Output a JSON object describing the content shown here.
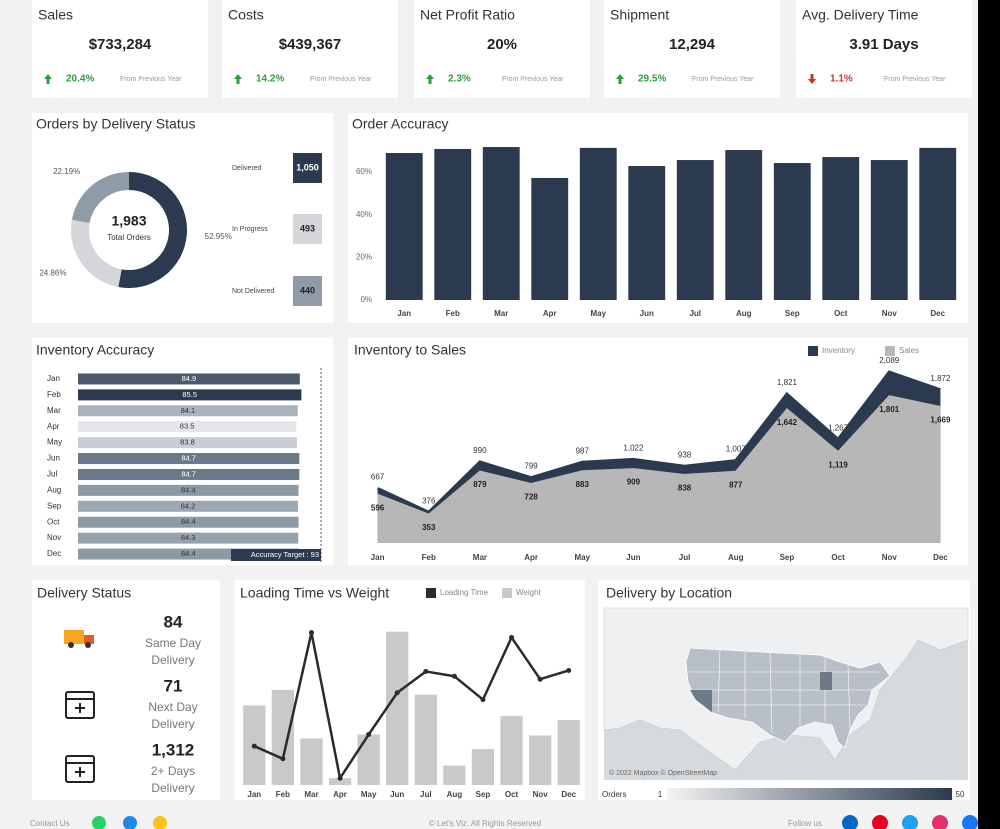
{
  "kpis": [
    {
      "title": "Sales",
      "value": "$733,284",
      "change": "20.4%",
      "trend": "up",
      "note": "From Previous Year"
    },
    {
      "title": "Costs",
      "value": "$439,367",
      "change": "14.2%",
      "trend": "up",
      "note": "From Previous Year"
    },
    {
      "title": "Net Profit Ratio",
      "value": "20%",
      "change": "2.3%",
      "trend": "up",
      "note": "From Previous Year"
    },
    {
      "title": "Shipment",
      "value": "12,294",
      "change": "29.5%",
      "trend": "up",
      "note": "From Previous Year"
    },
    {
      "title": "Avg. Delivery Time",
      "value": "3.91 Days",
      "change": "1.1%",
      "trend": "down",
      "note": "From Previous Year"
    }
  ],
  "chart_data": [
    {
      "type": "pie",
      "title": "Orders by Delivery Status",
      "categories": [
        "Delivered",
        "In Progress",
        "Not Delivered"
      ],
      "values": [
        52.95,
        24.86,
        22.19
      ],
      "value_labels": [
        "52.95%",
        "24.86%",
        "22.19%"
      ],
      "counts": [
        "1,050",
        "493",
        "440"
      ],
      "colors": [
        "#2b3a4e",
        "#d5d6da",
        "#8f9ba6"
      ],
      "total": "1,983",
      "total_label": "Total Orders"
    },
    {
      "type": "bar",
      "title": "Order Accuracy",
      "categories": [
        "Jan",
        "Feb",
        "Mar",
        "Apr",
        "May",
        "Jun",
        "Jul",
        "Aug",
        "Sep",
        "Oct",
        "Nov",
        "Dec"
      ],
      "values": [
        68.9,
        70.8,
        71.7,
        57.2,
        71.3,
        62.8,
        65.6,
        70.3,
        64.2,
        67.0,
        65.6,
        71.3
      ],
      "color": "#2b3a4e",
      "ylim": [
        0,
        75
      ],
      "yticks": [
        {
          "value": 0,
          "label": "0%"
        },
        {
          "value": 20,
          "label": "20%"
        },
        {
          "value": 40,
          "label": "40%"
        },
        {
          "value": 60,
          "label": "60%"
        }
      ]
    },
    {
      "type": "hbar",
      "title": "Inventory Accuracy",
      "categories": [
        "Jan",
        "Feb",
        "Mar",
        "Apr",
        "May",
        "Jun",
        "Jul",
        "Aug",
        "Sep",
        "Oct",
        "Nov",
        "Dec"
      ],
      "values": [
        84.9,
        85.5,
        84.1,
        83.5,
        83.8,
        84.7,
        84.7,
        84.4,
        84.2,
        84.4,
        84.3,
        84.4
      ],
      "colors": [
        "#4b5a6b",
        "#2b3a4e",
        "#aab3bd",
        "#e3e5e9",
        "#c9ced5",
        "#6b7888",
        "#6b7888",
        "#8e99a6",
        "#9ea8b3",
        "#8e99a6",
        "#98a2ad",
        "#8e99a6"
      ],
      "xlim": [
        0,
        93
      ],
      "target": 93,
      "target_label": "Accuracy Target : 93"
    },
    {
      "type": "area",
      "title": "Inventory to Sales",
      "legend": "top-right",
      "categories": [
        "Jan",
        "Feb",
        "Mar",
        "Apr",
        "May",
        "Jun",
        "Jul",
        "Aug",
        "Sep",
        "Oct",
        "Nov",
        "Dec"
      ],
      "ylim": [
        0,
        2200
      ],
      "series": [
        {
          "name": "Inventory",
          "color": "#2b3a4e",
          "values": [
            667,
            376,
            990,
            799,
            987,
            1022,
            938,
            1007,
            1821,
            1267,
            2089,
            1872
          ],
          "value_labels": [
            "667",
            "376",
            "990",
            "799",
            "987",
            "1,022",
            "938",
            "1,007",
            "1,821",
            "1,267",
            "2,089",
            "1,872"
          ]
        },
        {
          "name": "Sales",
          "color": "#b7b7b7",
          "values": [
            596,
            353,
            879,
            728,
            883,
            909,
            838,
            877,
            1642,
            1119,
            1801,
            1669
          ],
          "value_labels": [
            "596",
            "353",
            "879",
            "728",
            "883",
            "909",
            "838",
            "877",
            "1,642",
            "1,119",
            "1,801",
            "1,669"
          ]
        }
      ]
    },
    {
      "type": "combo",
      "title": "Loading Time vs Weight",
      "legend": "top",
      "categories": [
        "Jan",
        "Feb",
        "Mar",
        "Apr",
        "May",
        "Jun",
        "Jul",
        "Aug",
        "Sep",
        "Oct",
        "Nov",
        "Dec"
      ],
      "ylim": [
        0,
        170
      ],
      "series": [
        {
          "name": "Loading Time",
          "type": "line",
          "color": "#2b2b2b",
          "values": [
            40,
            27,
            157,
            7,
            52,
            95,
            117,
            112,
            88,
            152,
            109,
            118
          ]
        },
        {
          "name": "Weight",
          "type": "bar",
          "color": "#c9c9c9",
          "values": [
            82,
            98,
            48,
            7,
            52,
            158,
            93,
            20,
            37,
            71,
            51,
            67
          ]
        }
      ]
    }
  ],
  "delivery_status": {
    "title": "Delivery Status",
    "items": [
      {
        "value": "84",
        "label": [
          "Same Day",
          "Delivery"
        ]
      },
      {
        "value": "71",
        "label": [
          "Next Day",
          "Delivery"
        ]
      },
      {
        "value": "1,312",
        "label": [
          "2+ Days",
          "Delivery"
        ]
      }
    ]
  },
  "map": {
    "title": "Delivery by Location",
    "attribution": "© 2022 Mapbox © OpenStreetMap",
    "legend_title": "Orders",
    "legend_min": 1,
    "legend_max": 50
  },
  "footer": {
    "contact": "Contact Us",
    "copyright": "© Let's Viz. All Rights Reserved",
    "follow": "Follow us"
  }
}
